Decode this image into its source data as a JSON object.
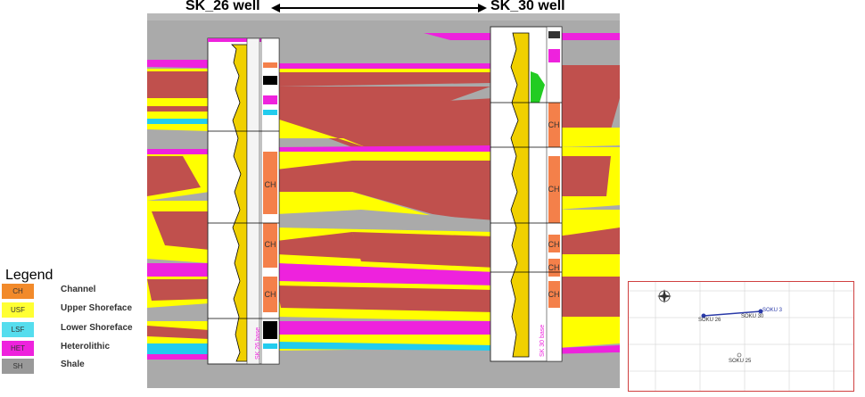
{
  "header": {
    "left_well": "SK_26 well",
    "right_well": "SK_30 well"
  },
  "legend": {
    "title": "Legend",
    "items": [
      {
        "code": "CH",
        "label": "Channel",
        "color": "#f28a2a"
      },
      {
        "code": "USF",
        "label": "Upper Shoreface",
        "color": "#ffff33"
      },
      {
        "code": "LSF",
        "label": "Lower Shoreface",
        "color": "#55ddee"
      },
      {
        "code": "HET",
        "label": "Heterolithic",
        "color": "#ee22dd"
      },
      {
        "code": "SH",
        "label": "Shale",
        "color": "#999999"
      }
    ]
  },
  "colors": {
    "channel_body": "#c0504d",
    "channel_facies": "#f4804a",
    "upper_shoreface": "#ffff00",
    "lower_shoreface": "#22ccee",
    "heterolithic": "#ee22dd",
    "shale": "#aaaaaa",
    "gr_fill": "#f0d000",
    "green_fill": "#22cc22"
  },
  "well_logs": {
    "left_facies_labels": [
      "CH",
      "CH",
      "CH"
    ],
    "right_facies_labels": [
      "CH",
      "CH",
      "CH",
      "CH",
      "CH"
    ],
    "left_marker": "SK 26 base",
    "right_marker": "SK 30 base"
  },
  "map": {
    "wells": [
      "SOKU 26",
      "SOKU 30",
      "SOKU 25"
    ],
    "extra_label": "SOKU 3"
  }
}
